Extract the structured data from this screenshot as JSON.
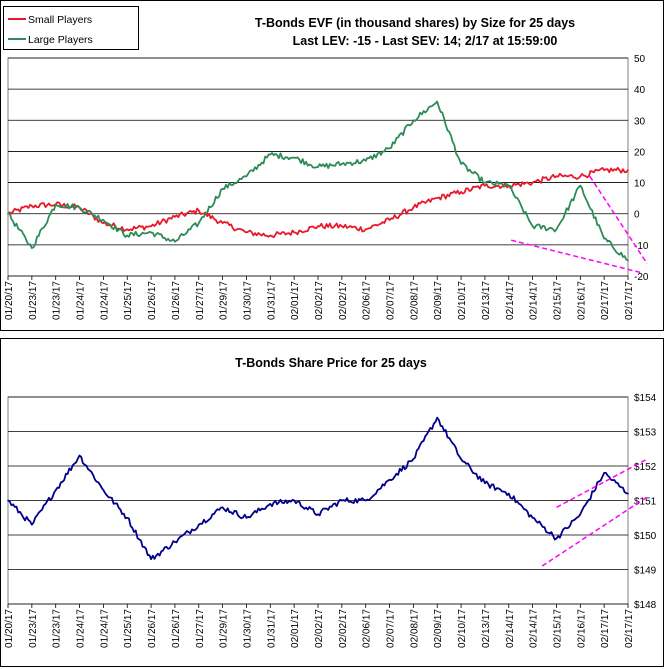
{
  "chart_data": [
    {
      "type": "line",
      "title": "T-Bonds EVF (in thousand shares) by Size for 25 days",
      "subtitle": "Last LEV: -15 - Last SEV: 14; 2/17 at 15:59:00",
      "xlabel": "",
      "ylabel": "",
      "ylim": [
        -20,
        50
      ],
      "yticks": [
        "-20",
        "-10",
        "0",
        "10",
        "20",
        "30",
        "40",
        "50"
      ],
      "grid": true,
      "legend": "top-left",
      "categories": [
        "01/20/17",
        "01/23/17",
        "01/23/17",
        "01/24/17",
        "01/24/17",
        "01/25/17",
        "01/26/17",
        "01/26/17",
        "01/27/17",
        "01/29/17",
        "01/30/17",
        "01/31/17",
        "02/01/17",
        "02/02/17",
        "02/02/17",
        "02/06/17",
        "02/07/17",
        "02/08/17",
        "02/09/17",
        "02/10/17",
        "02/13/17",
        "02/14/17",
        "02/14/17",
        "02/15/17",
        "02/16/17",
        "02/17/17",
        "02/17/17"
      ],
      "series": [
        {
          "name": "Small Players",
          "color": "#e8192c",
          "values": [
            0,
            2.5,
            3,
            2,
            -3,
            -5,
            -4,
            -1,
            1,
            -3,
            -6,
            -7,
            -6,
            -4,
            -4,
            -5,
            -2,
            2,
            5,
            7,
            9,
            9,
            10,
            12,
            12,
            14,
            14
          ]
        },
        {
          "name": "Large Players",
          "color": "#2e8b57",
          "values": [
            0,
            -11,
            3,
            2,
            -2,
            -7,
            -6,
            -9,
            -3,
            8,
            12,
            19,
            18,
            15,
            16,
            17,
            21,
            30,
            36,
            16,
            10,
            9,
            -4,
            -5,
            9,
            -8,
            -15
          ]
        }
      ]
    },
    {
      "type": "line",
      "title": "T-Bonds Share Price for 25 days",
      "xlabel": "",
      "ylabel": "",
      "ylim": [
        148,
        154
      ],
      "yticks": [
        "$148",
        "$149",
        "$150",
        "$151",
        "$152",
        "$153",
        "$154"
      ],
      "grid": true,
      "categories": [
        "01/20/17",
        "01/23/17",
        "01/23/17",
        "01/24/17",
        "01/24/17",
        "01/25/17",
        "01/26/17",
        "01/26/17",
        "01/27/17",
        "01/29/17",
        "01/30/17",
        "01/31/17",
        "02/01/17",
        "02/02/17",
        "02/02/17",
        "02/06/17",
        "02/07/17",
        "02/08/17",
        "02/09/17",
        "02/10/17",
        "02/13/17",
        "02/14/17",
        "02/14/17",
        "02/15/17",
        "02/16/17",
        "02/17/17",
        "02/17/17"
      ],
      "series": [
        {
          "color": "#00008b",
          "values": [
            151,
            150.3,
            151.3,
            152.3,
            151.3,
            150.5,
            149.3,
            149.8,
            150.3,
            150.8,
            150.5,
            150.9,
            151,
            150.6,
            151,
            151,
            151.6,
            152.2,
            153.4,
            152.2,
            151.5,
            151.2,
            150.5,
            149.9,
            150.6,
            151.8,
            151.2
          ]
        }
      ]
    }
  ],
  "annotations": {
    "trend_color": "#ff00ff"
  }
}
